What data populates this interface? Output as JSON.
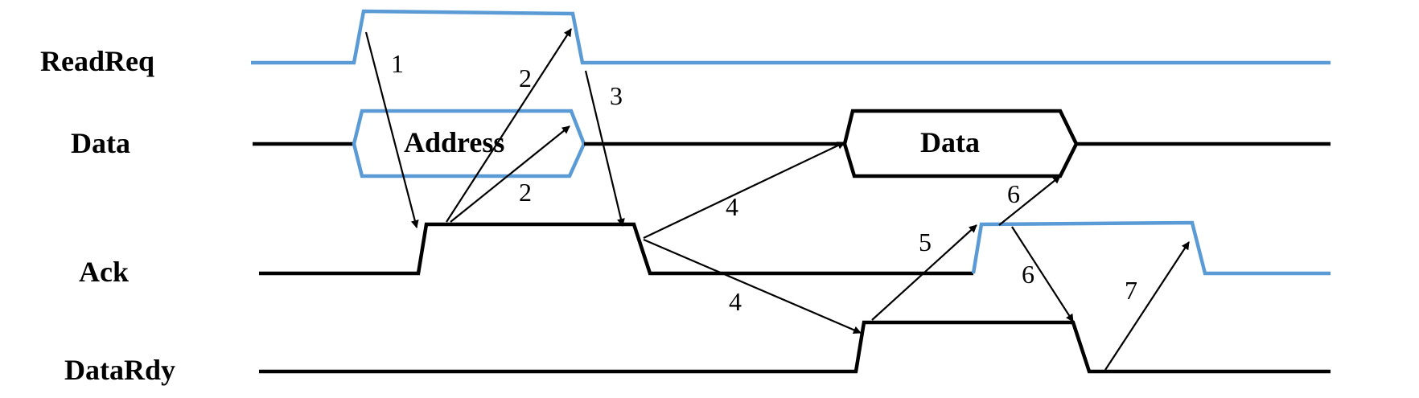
{
  "signals": {
    "read_req": "ReadReq",
    "data": "Data",
    "ack": "Ack",
    "data_rdy": "DataRdy"
  },
  "bus_values": {
    "address": "Address",
    "data": "Data"
  },
  "steps": {
    "s1": "1",
    "s2a": "2",
    "s2b": "2",
    "s3": "3",
    "s4a": "4",
    "s4b": "4",
    "s5": "5",
    "s6a": "6",
    "s6b": "6",
    "s7": "7"
  },
  "colors": {
    "driven_by_requester": "#5b9bd5",
    "driven_by_responder": "#000000"
  }
}
